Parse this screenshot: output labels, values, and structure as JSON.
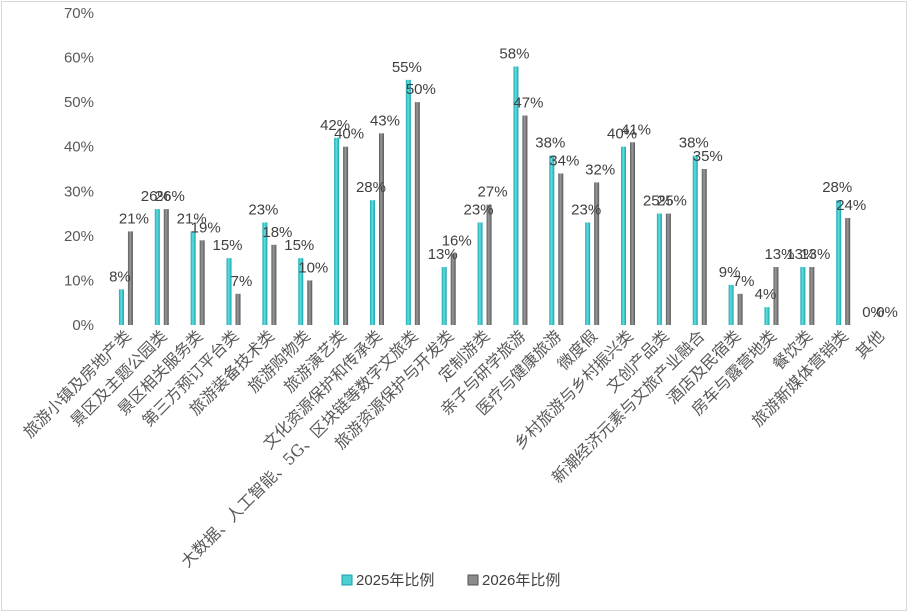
{
  "chart_data": {
    "type": "bar",
    "title": "",
    "xlabel": "",
    "ylabel": "",
    "ylim": [
      0,
      70
    ],
    "y_ticks": [
      "0%",
      "10%",
      "20%",
      "30%",
      "40%",
      "50%",
      "60%",
      "70%"
    ],
    "grid": false,
    "legend_position": "bottom",
    "categories": [
      "旅游小镇及房地产类",
      "景区及主题公园类",
      "景区相关服务类",
      "第三方预订平台类",
      "旅游装备技术类",
      "旅游购物类",
      "旅游演艺类",
      "文化资源保护和传承类",
      "大数据、人工智能、5G、区块链等数字文旅类",
      "旅游资源保护与开发类",
      "定制游类",
      "亲子与研学旅游",
      "医疗与健康旅游",
      "微度假",
      "乡村旅游与乡村振兴类",
      "文创产品类",
      "新潮经济元素与文旅产业融合",
      "酒店及民宿类",
      "房车与露营地类",
      "餐饮类",
      "旅游新媒体营销类",
      "其他"
    ],
    "series": [
      {
        "name": "2025年比例",
        "color": "#4ecfd1",
        "values": [
          8,
          26,
          21,
          15,
          23,
          15,
          42,
          28,
          55,
          13,
          23,
          58,
          38,
          23,
          40,
          25,
          38,
          9,
          4,
          13,
          28,
          0
        ]
      },
      {
        "name": "2026年比例",
        "color": "#8c8c8c",
        "values": [
          21,
          26,
          19,
          7,
          18,
          10,
          40,
          43,
          50,
          16,
          27,
          47,
          34,
          32,
          41,
          25,
          35,
          7,
          13,
          13,
          24,
          0
        ]
      }
    ]
  }
}
